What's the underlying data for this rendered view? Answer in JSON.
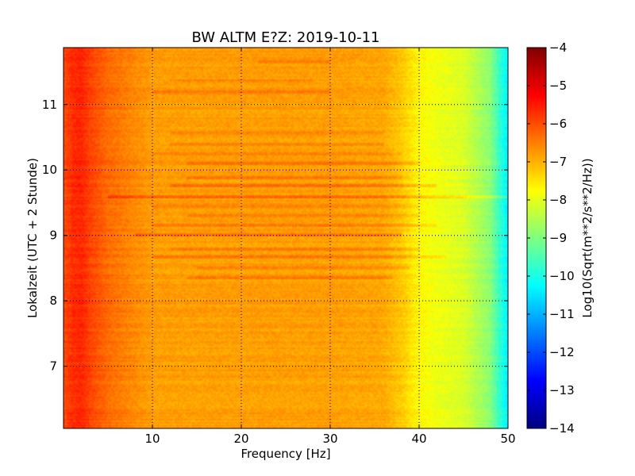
{
  "chart_data": {
    "type": "heatmap",
    "title": "BW ALTM E?Z: 2019-10-11",
    "xlabel": "Frequency [Hz]",
    "ylabel": "Lokalzeit (UTC + 2 Stunde)",
    "xlim": [
      0,
      50
    ],
    "ylim": [
      11.87,
      6.05
    ],
    "x_ticks": [
      10,
      20,
      30,
      40,
      50
    ],
    "y_ticks": [
      7,
      8,
      9,
      10,
      11
    ],
    "grid": true,
    "colorbar": {
      "label": "Log10(Sqrt(m**2/s**2/Hz))",
      "range": [
        -14,
        -4
      ],
      "ticks": [
        -4,
        -5,
        -6,
        -7,
        -8,
        -9,
        -10,
        -11,
        -12,
        -13,
        -14
      ],
      "colormap": "jet"
    },
    "spectrum_profile": {
      "frequency_hz": [
        0,
        1,
        2,
        3,
        5,
        8,
        10,
        20,
        30,
        36,
        38,
        40,
        42,
        45,
        48,
        49,
        50
      ],
      "log10_amplitude": [
        -6.0,
        -5.7,
        -5.6,
        -5.9,
        -6.3,
        -6.6,
        -6.8,
        -6.8,
        -6.8,
        -6.9,
        -7.2,
        -7.7,
        -7.9,
        -8.1,
        -8.9,
        -9.7,
        -10.4
      ]
    },
    "horizontal_bands": [
      {
        "time_h": 8.35,
        "f_start": 14,
        "f_end": 37,
        "delta": 0.35
      },
      {
        "time_h": 8.5,
        "f_start": 15,
        "f_end": 39,
        "delta": 0.3
      },
      {
        "time_h": 8.67,
        "f_start": 10,
        "f_end": 43,
        "delta": 0.35
      },
      {
        "time_h": 8.8,
        "f_start": 12,
        "f_end": 40,
        "delta": 0.3
      },
      {
        "time_h": 9.0,
        "f_start": 8,
        "f_end": 38,
        "delta": 0.45
      },
      {
        "time_h": 9.15,
        "f_start": 10,
        "f_end": 42,
        "delta": 0.35
      },
      {
        "time_h": 9.3,
        "f_start": 14,
        "f_end": 40,
        "delta": 0.3
      },
      {
        "time_h": 9.45,
        "f_start": 10,
        "f_end": 40,
        "delta": 0.35
      },
      {
        "time_h": 9.6,
        "f_start": 5,
        "f_end": 50,
        "delta": 0.55
      },
      {
        "time_h": 9.75,
        "f_start": 12,
        "f_end": 42,
        "delta": 0.4
      },
      {
        "time_h": 9.88,
        "f_start": 14,
        "f_end": 38,
        "delta": 0.3
      },
      {
        "time_h": 10.1,
        "f_start": 14,
        "f_end": 40,
        "delta": 0.35
      },
      {
        "time_h": 10.25,
        "f_start": 10,
        "f_end": 38,
        "delta": 0.3
      },
      {
        "time_h": 10.4,
        "f_start": 12,
        "f_end": 36,
        "delta": 0.3
      },
      {
        "time_h": 10.55,
        "f_start": 12,
        "f_end": 36,
        "delta": 0.25
      },
      {
        "time_h": 11.2,
        "f_start": 10,
        "f_end": 30,
        "delta": 0.25
      },
      {
        "time_h": 11.35,
        "f_start": 12,
        "f_end": 28,
        "delta": 0.25
      },
      {
        "time_h": 11.65,
        "f_start": 22,
        "f_end": 30,
        "delta": 0.3
      }
    ]
  }
}
